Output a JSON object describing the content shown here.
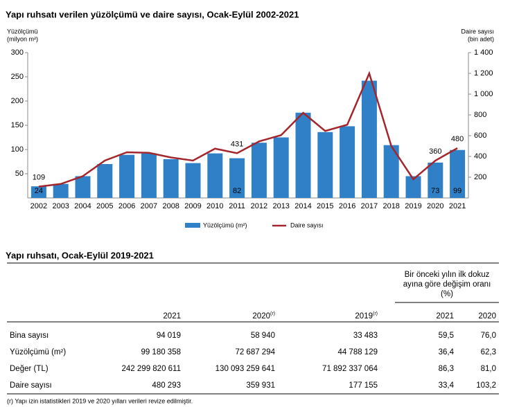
{
  "chart_data": {
    "type": "combo",
    "title": "Yapı ruhsatı verilen yüzölçümü ve daire sayısı, Ocak-Eylül 2002-2021",
    "y_label": [
      "Yüzölçümü",
      "(milyon m²)"
    ],
    "y2_label": [
      "Daire sayısı",
      "(bin adet)"
    ],
    "categories": [
      "2002",
      "2003",
      "2004",
      "2005",
      "2006",
      "2007",
      "2008",
      "2009",
      "2010",
      "2011",
      "2012",
      "2013",
      "2014",
      "2015",
      "2016",
      "2017",
      "2018",
      "2019",
      "2020",
      "2021"
    ],
    "series": [
      {
        "name": "Yüzölçümü (m²)",
        "type": "bar",
        "color": "#2f80c7",
        "axis": "y",
        "values": [
          24,
          29,
          45,
          70,
          89,
          92,
          80,
          72,
          92,
          82,
          114,
          125,
          176,
          136,
          148,
          242,
          109,
          45,
          73,
          99
        ],
        "label_indices": [
          0,
          9,
          18,
          19
        ]
      },
      {
        "name": "Daire sayısı",
        "type": "line",
        "color": "#a3262c",
        "axis": "y2",
        "values": [
          109,
          135,
          210,
          360,
          440,
          435,
          390,
          360,
          475,
          431,
          545,
          605,
          820,
          645,
          705,
          1200,
          500,
          180,
          360,
          480
        ],
        "label_indices": [
          0,
          9,
          18,
          19
        ]
      }
    ],
    "ylim": [
      0,
      300
    ],
    "yticks": [
      50,
      100,
      150,
      200,
      250,
      300
    ],
    "y2lim": [
      0,
      1400
    ],
    "y2ticks": [
      200,
      400,
      600,
      800,
      {
        "value": 1000,
        "label": "1 000"
      },
      {
        "value": 1200,
        "label": "1 200"
      },
      {
        "value": 1400,
        "label": "1 400"
      }
    ]
  },
  "table": {
    "title": "Yapı ruhsatı, Ocak-Eylül 2019-2021",
    "group_header": [
      "Bir önceki yılın ilk dokuz",
      "ayına göre değişim oranı",
      "(%)"
    ],
    "columns": [
      {
        "text": "2021"
      },
      {
        "text": "2020",
        "note": "(r)"
      },
      {
        "text": "2019",
        "note": "(r)"
      },
      {
        "text": "2021"
      },
      {
        "text": "2020"
      }
    ],
    "rows": [
      [
        "Bina sayısı",
        "94 019",
        "58 940",
        "33 483",
        "59,5",
        "76,0"
      ],
      [
        "Yüzölçümü (m²)",
        "99 180 358",
        "72 687 294",
        "44 788 129",
        "36,4",
        "62,3"
      ],
      [
        "Değer (TL)",
        "242 299 820 611",
        "130 093 259 641",
        "71 892 337 064",
        "86,3",
        "81,0"
      ],
      [
        "Daire sayısı",
        "480 293",
        "359 931",
        "177 155",
        "33,4",
        "103,2"
      ]
    ],
    "footnote": "(r) Yapı izin istatistikleri 2019 ve 2020 yılları verileri revize edilmiştir."
  }
}
